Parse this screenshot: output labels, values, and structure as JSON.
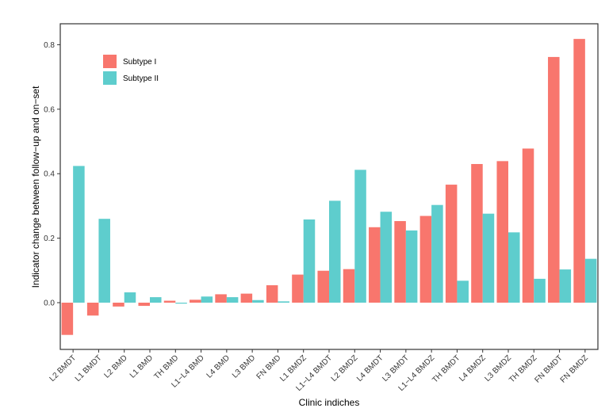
{
  "chart_data": {
    "type": "bar",
    "title": "",
    "xlabel": "Clinic indiches",
    "ylabel": "Indicator change between follow−up and on−set",
    "categories": [
      "L2 BMDT",
      "L1 BMDT",
      "L2 BMD",
      "L1 BMD",
      "TH BMD",
      "L1−L4 BMD",
      "L4 BMD",
      "L3 BMD",
      "FN BMD",
      "L1 BMDZ",
      "L1−L4 BMDT",
      "L2 BMDZ",
      "L4 BMDT",
      "L3 BMDT",
      "L1−L4 BMDZ",
      "TH BMDT",
      "L4 BMDZ",
      "L3 BMDZ",
      "TH BMDZ",
      "FN BMDT",
      "FN BMDZ"
    ],
    "series": [
      {
        "name": "Subtype I",
        "color": "#F8766D",
        "values": [
          -0.1,
          -0.04,
          -0.012,
          -0.01,
          0.006,
          0.009,
          0.026,
          0.028,
          0.054,
          0.087,
          0.099,
          0.104,
          0.234,
          0.253,
          0.269,
          0.366,
          0.43,
          0.439,
          0.478,
          0.762,
          0.818
        ]
      },
      {
        "name": "Subtype II",
        "color": "#5ECDCD",
        "values": [
          0.424,
          0.26,
          0.032,
          0.017,
          -0.003,
          0.019,
          0.017,
          0.008,
          0.004,
          0.258,
          0.316,
          0.412,
          0.282,
          0.224,
          0.303,
          0.068,
          0.276,
          0.218,
          0.074,
          0.103,
          0.136
        ]
      }
    ],
    "yticks": [
      0.0,
      0.2,
      0.4,
      0.6,
      0.8
    ],
    "ylim": [
      -0.145,
      0.865
    ],
    "grid": false,
    "legend_position": "top-left"
  }
}
